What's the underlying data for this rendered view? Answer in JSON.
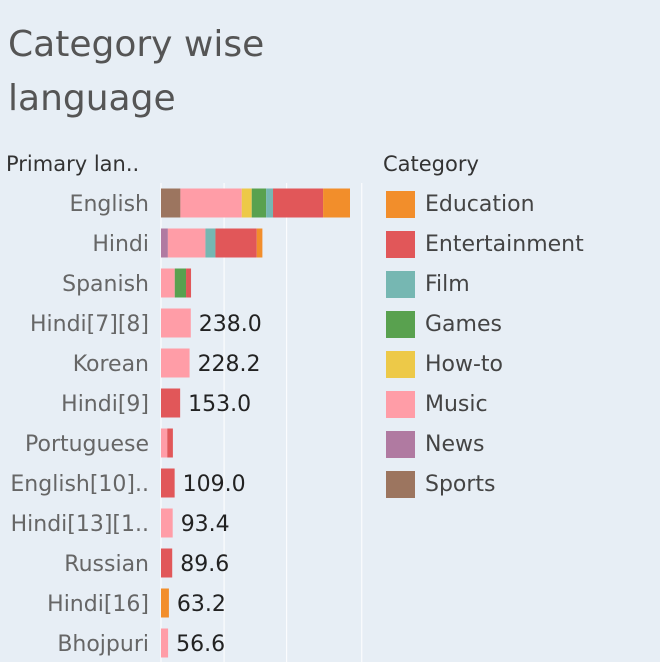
{
  "title_line1": "Category wise",
  "title_line2": "language",
  "legend_title": "Category",
  "legend": [
    {
      "name": "Education",
      "color": "#f28e2b"
    },
    {
      "name": "Entertainment",
      "color": "#e15759"
    },
    {
      "name": "Film",
      "color": "#76b7b2"
    },
    {
      "name": "Games",
      "color": "#59a14f"
    },
    {
      "name": "How-to",
      "color": "#edc948"
    },
    {
      "name": "Music",
      "color": "#ff9da7"
    },
    {
      "name": "News",
      "color": "#b07aa1"
    },
    {
      "name": "Sports",
      "color": "#9c755f"
    }
  ],
  "chart_data": {
    "type": "bar",
    "orientation": "horizontal",
    "stacked": true,
    "row_header": "Primary lan..",
    "categories": [
      "English",
      "Hindi",
      "Spanish",
      "Hindi[7][8]",
      "Korean",
      "Hindi[9]",
      "Portuguese",
      "English[10]..",
      "Hindi[13][1..",
      "Russian",
      "Hindi[16]",
      "Bhojpuri"
    ],
    "xlim": [
      0,
      1600
    ],
    "grid": true,
    "series": [
      {
        "name": "Sports",
        "values": [
          155,
          0,
          0,
          0,
          0,
          0,
          0,
          0,
          0,
          0,
          0,
          0
        ]
      },
      {
        "name": "News",
        "values": [
          0,
          55,
          0,
          0,
          0,
          0,
          0,
          0,
          0,
          0,
          0,
          0
        ]
      },
      {
        "name": "Music",
        "values": [
          490,
          300,
          110,
          238.0,
          228.2,
          0,
          50,
          0,
          93.4,
          0,
          0,
          56.6
        ]
      },
      {
        "name": "How-to",
        "values": [
          80,
          0,
          0,
          0,
          0,
          0,
          0,
          0,
          0,
          0,
          0,
          0
        ]
      },
      {
        "name": "Games",
        "values": [
          115,
          0,
          90,
          0,
          0,
          0,
          0,
          0,
          0,
          0,
          0,
          0
        ]
      },
      {
        "name": "Film",
        "values": [
          55,
          80,
          0,
          0,
          0,
          0,
          0,
          0,
          0,
          0,
          0,
          0
        ]
      },
      {
        "name": "Entertainment",
        "values": [
          400,
          330,
          40,
          0,
          0,
          153.0,
          45,
          109.0,
          0,
          89.6,
          0,
          0
        ]
      },
      {
        "name": "Education",
        "values": [
          215,
          45,
          0,
          0,
          0,
          0,
          0,
          0,
          0,
          0,
          63.2,
          0
        ]
      }
    ],
    "value_labels": [
      "",
      "",
      "",
      "238.0",
      "228.2",
      "153.0",
      "",
      "109.0",
      "93.4",
      "89.6",
      "63.2",
      "56.6"
    ]
  }
}
